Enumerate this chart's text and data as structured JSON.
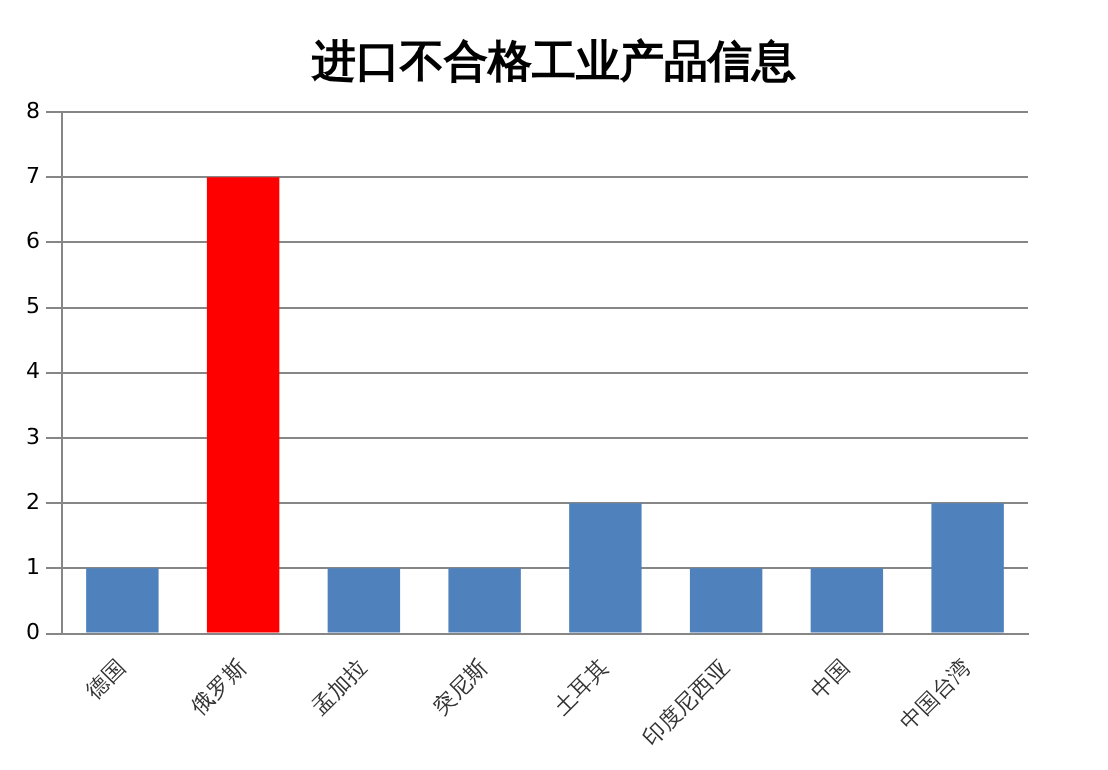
{
  "chart_data": {
    "type": "bar",
    "title": "进口不合格工业产品信息",
    "categories": [
      "德国",
      "俄罗斯",
      "孟加拉",
      "突尼斯",
      "土耳其",
      "印度尼西亚",
      "中国",
      "中国台湾"
    ],
    "values": [
      1,
      7,
      1,
      1,
      2,
      1,
      1,
      2
    ],
    "colors": [
      "#4f81bd",
      "#ff0000",
      "#4f81bd",
      "#4f81bd",
      "#4f81bd",
      "#4f81bd",
      "#4f81bd",
      "#4f81bd"
    ],
    "ylim": [
      0,
      8
    ],
    "yticks": [
      0,
      1,
      2,
      3,
      4,
      5,
      6,
      7,
      8
    ],
    "grid": "y",
    "legend": false
  }
}
